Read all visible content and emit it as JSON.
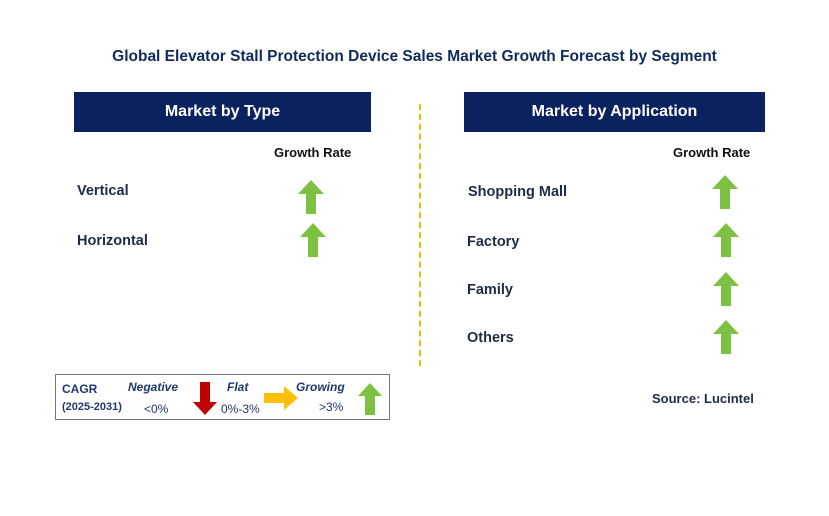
{
  "title": "Global Elevator Stall Protection Device Sales Market Growth Forecast by Segment",
  "type_panel": {
    "header": "Market by Type",
    "growth_rate_label": "Growth Rate",
    "rows": [
      {
        "label": "Vertical",
        "trend": "growing"
      },
      {
        "label": "Horizontal",
        "trend": "growing"
      }
    ]
  },
  "application_panel": {
    "header": "Market by Application",
    "growth_rate_label": "Growth Rate",
    "rows": [
      {
        "label": "Shopping Mall",
        "trend": "growing"
      },
      {
        "label": "Factory",
        "trend": "growing"
      },
      {
        "label": "Family",
        "trend": "growing"
      },
      {
        "label": "Others",
        "trend": "growing"
      }
    ]
  },
  "legend": {
    "cagr": "CAGR",
    "period": "(2025-2031)",
    "negative_label": "Negative",
    "negative_range": "<0%",
    "flat_label": "Flat",
    "flat_range": "0%-3%",
    "growing_label": "Growing",
    "growing_range": ">3%"
  },
  "source": "Source: Lucintel",
  "colors": {
    "header_bg": "#0b2160",
    "growing_arrow": "#7dc142",
    "negative_arrow": "#c00000",
    "flat_arrow": "#ffc000",
    "divider": "#f5b700"
  }
}
